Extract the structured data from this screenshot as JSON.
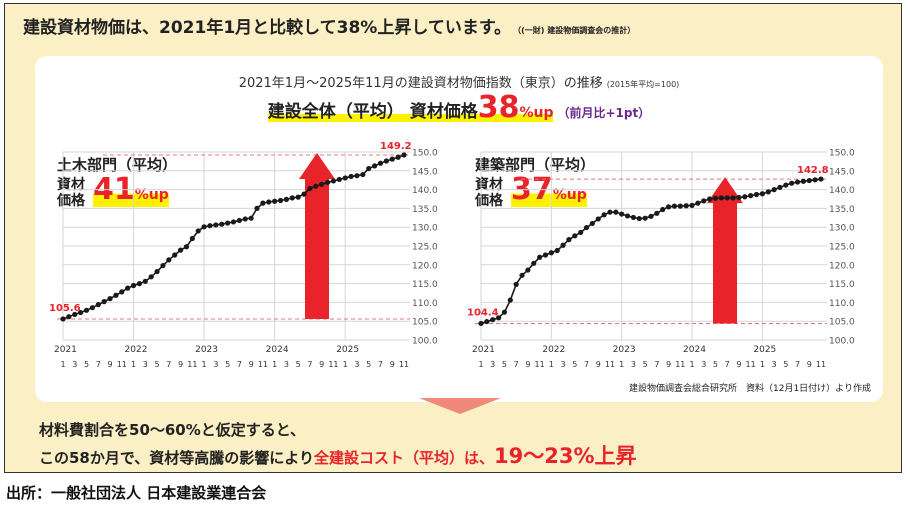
{
  "headline": {
    "main": "建設資材物価は、2021年1月と比較して38%上昇しています。",
    "note": "（(一財) 建設物価調査会の推計）"
  },
  "panel": {
    "title": "2021年1月～2025年11月の建設資材物価指数（東京）の推移",
    "title_note": "(2015年平均=100)",
    "overall_label": "建設全体（平均） 資材価格",
    "overall_value": "38",
    "overall_suffix": "%up",
    "overall_change": "（前月比+1pt）",
    "source": "建設物価調査会総合研究所　資料（12月1日付け）より作成"
  },
  "conclusion": {
    "line1": "材料費割合を50～60%と仮定すると、",
    "line2_a": "この58か月で、資材等高騰の影響により",
    "line2_b": "全建設コスト（平均）は、",
    "line2_c": "19～23%上昇"
  },
  "footer": "出所：一般社団法人 日本建設業連合会",
  "colors": {
    "accent_red": "#e8232a",
    "highlight": "#fff200",
    "frame_bg": "#fbefc6",
    "arrow_down": "#ef8a7a"
  },
  "chart_data": [
    {
      "type": "line",
      "title": "土木部門（平均）",
      "material_label": "資材\n価格",
      "rate_value": "41",
      "rate_suffix": "%up",
      "start_label": "105.6",
      "end_label": "149.2",
      "ylim": [
        100,
        150
      ],
      "yticks": [
        "100.0",
        "105.0",
        "110.0",
        "115.0",
        "120.0",
        "125.0",
        "130.0",
        "135.0",
        "140.0",
        "145.0",
        "150.0"
      ],
      "year_labels": [
        "2021",
        "2022",
        "2023",
        "2024",
        "2025"
      ],
      "month_ticks": [
        "1",
        "3",
        "5",
        "7",
        "9",
        "11"
      ],
      "values": [
        105.6,
        106.2,
        106.8,
        107.3,
        107.9,
        108.6,
        109.4,
        110.2,
        111.0,
        111.9,
        112.8,
        113.8,
        114.5,
        115.0,
        115.6,
        116.8,
        118.2,
        119.8,
        121.3,
        122.6,
        123.9,
        124.8,
        127.0,
        129.0,
        130.1,
        130.4,
        130.6,
        130.8,
        131.1,
        131.4,
        131.8,
        132.2,
        132.4,
        135.0,
        136.4,
        136.7,
        136.9,
        137.1,
        137.4,
        137.8,
        138.0,
        138.8,
        140.3,
        140.9,
        141.4,
        141.9,
        142.3,
        142.7,
        143.1,
        143.5,
        143.7,
        144.0,
        145.6,
        146.3,
        147.0,
        147.6,
        148.1,
        148.6,
        149.2
      ]
    },
    {
      "type": "line",
      "title": "建築部門（平均）",
      "material_label": "資材\n価格",
      "rate_value": "37",
      "rate_suffix": "%up",
      "start_label": "104.4",
      "end_label": "142.8",
      "ylim": [
        100,
        150
      ],
      "yticks": [
        "100.0",
        "105.0",
        "110.0",
        "115.0",
        "120.0",
        "125.0",
        "130.0",
        "135.0",
        "140.0",
        "145.0",
        "150.0"
      ],
      "year_labels": [
        "2021",
        "2022",
        "2023",
        "2024",
        "2025"
      ],
      "month_ticks": [
        "1",
        "3",
        "5",
        "7",
        "9",
        "11"
      ],
      "values": [
        104.4,
        104.9,
        105.4,
        105.9,
        107.4,
        110.6,
        114.8,
        117.2,
        118.6,
        120.4,
        122.0,
        122.6,
        123.2,
        123.8,
        125.2,
        126.7,
        127.7,
        128.6,
        129.9,
        131.0,
        132.2,
        133.3,
        134.0,
        134.0,
        133.5,
        133.0,
        132.6,
        132.3,
        132.4,
        132.9,
        133.7,
        134.7,
        135.4,
        135.6,
        135.6,
        135.7,
        135.8,
        136.4,
        137.0,
        137.5,
        137.7,
        137.8,
        137.8,
        137.8,
        137.9,
        138.1,
        138.4,
        138.7,
        138.9,
        139.4,
        140.0,
        140.6,
        141.2,
        141.7,
        142.0,
        142.2,
        142.4,
        142.6,
        142.8
      ]
    }
  ]
}
